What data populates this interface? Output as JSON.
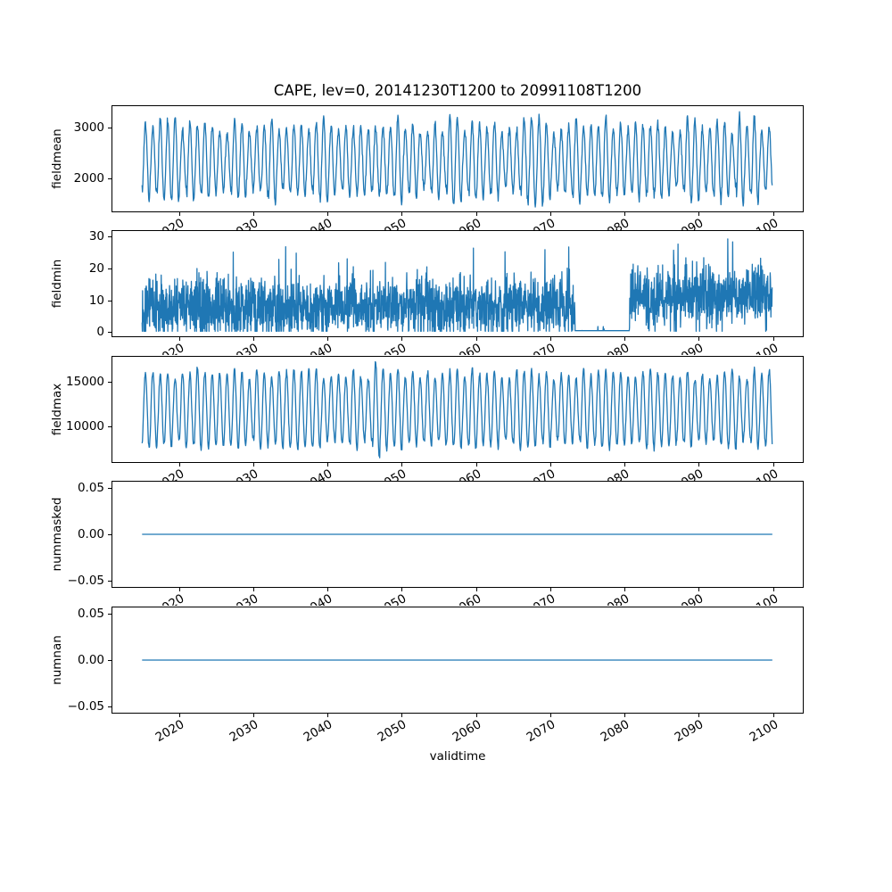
{
  "figure": {
    "title": "CAPE, lev=0, 20141230T1200 to 20991108T1200",
    "xlabel": "validtime",
    "background_color": "#ffffff",
    "frame_color": "#000000",
    "text_color": "#000000",
    "line_color": "#1f77b4",
    "x_axis": {
      "tick_rotation_deg": 30,
      "xlim": [
        2010.9,
        2104.2
      ],
      "data_x_start": 2014.99,
      "data_x_end": 2099.86,
      "ticks": [
        {
          "v": 2020,
          "label": "2020"
        },
        {
          "v": 2030,
          "label": "2030"
        },
        {
          "v": 2040,
          "label": "2040"
        },
        {
          "v": 2050,
          "label": "2050"
        },
        {
          "v": 2060,
          "label": "2060"
        },
        {
          "v": 2070,
          "label": "2070"
        },
        {
          "v": 2080,
          "label": "2080"
        },
        {
          "v": 2090,
          "label": "2090"
        },
        {
          "v": 2100,
          "label": "2100"
        }
      ]
    }
  },
  "chart_data": [
    {
      "type": "line",
      "series_name": "fieldmean",
      "ylabel": "fieldmean",
      "ylim": [
        1330,
        3440
      ],
      "yticks": [
        {
          "v": 2000,
          "label": "2000"
        },
        {
          "v": 3000,
          "label": "3000"
        }
      ],
      "x_start": 2014.99,
      "x_end": 2099.86,
      "summary": "Dense annual oscillation of area-mean CAPE; peaks ~2700-3300 (one ~3400 near 2095), troughs ~1400-1900, about 85 yearly cycles 2015-2099.",
      "synthesis": {
        "kind": "seasonal",
        "seed": 7,
        "dt": 0.05,
        "base": 2350,
        "amp_min": 520,
        "amp_max": 870,
        "noise": 110,
        "anomaly": {
          "year": 2095,
          "extra": 120
        }
      }
    },
    {
      "type": "line",
      "series_name": "fieldmin",
      "ylabel": "fieldmin",
      "ylim": [
        -1.6,
        32.0
      ],
      "yticks": [
        {
          "v": 0,
          "label": "0"
        },
        {
          "v": 10,
          "label": "10"
        },
        {
          "v": 20,
          "label": "20"
        },
        {
          "v": 30,
          "label": "30"
        }
      ],
      "x_start": 2014.99,
      "x_end": 2099.86,
      "summary": "Noisy field minimum, mostly 0-20 around mean ~8 with spikes to ~27-29; near-zero flat segment from ~2073.3 to ~2080.6, slightly elevated values after 2081.",
      "synthesis": {
        "kind": "noisy-positive",
        "seed": 13,
        "dt": 0.033,
        "mean": 7.5,
        "spread": 5.5,
        "spike_prob": 0.012,
        "spike_max": 27.5,
        "flat_start": 2073.3,
        "flat_end": 2080.6,
        "flat_value": 0.2,
        "late_mean": 10.5,
        "late_spike_max": 29.5
      }
    },
    {
      "type": "line",
      "series_name": "fieldmax",
      "ylabel": "fieldmax",
      "ylim": [
        5900,
        17900
      ],
      "yticks": [
        {
          "v": 10000,
          "label": "10000"
        },
        {
          "v": 15000,
          "label": "15000"
        }
      ],
      "x_start": 2014.99,
      "x_end": 2099.86,
      "summary": "Annual oscillation of field maximum; peaks ~14500-17000 (one ~17500 near 2046), troughs ~7000-8800.",
      "synthesis": {
        "kind": "seasonal",
        "seed": 42,
        "dt": 0.05,
        "base": 11900,
        "amp_min": 3400,
        "amp_max": 4700,
        "noise": 430,
        "anomaly": {
          "year": 2046,
          "extra": 800
        }
      }
    },
    {
      "type": "line",
      "series_name": "nummasked",
      "ylabel": "nummasked",
      "ylim": [
        -0.0576,
        0.0576
      ],
      "yticks": [
        {
          "v": -0.05,
          "label": "−0.05"
        },
        {
          "v": 0,
          "label": "0.00"
        },
        {
          "v": 0.05,
          "label": "0.05"
        }
      ],
      "x_start": 2014.99,
      "x_end": 2099.86,
      "summary": "Constant zero for the whole period.",
      "synthesis": {
        "kind": "constant",
        "value": 0
      }
    },
    {
      "type": "line",
      "series_name": "numnan",
      "ylabel": "numnan",
      "ylim": [
        -0.0576,
        0.0576
      ],
      "yticks": [
        {
          "v": -0.05,
          "label": "−0.05"
        },
        {
          "v": 0,
          "label": "0.00"
        },
        {
          "v": 0.05,
          "label": "0.05"
        }
      ],
      "x_start": 2014.99,
      "x_end": 2099.86,
      "summary": "Constant zero for the whole period.",
      "synthesis": {
        "kind": "constant",
        "value": 0
      }
    }
  ]
}
